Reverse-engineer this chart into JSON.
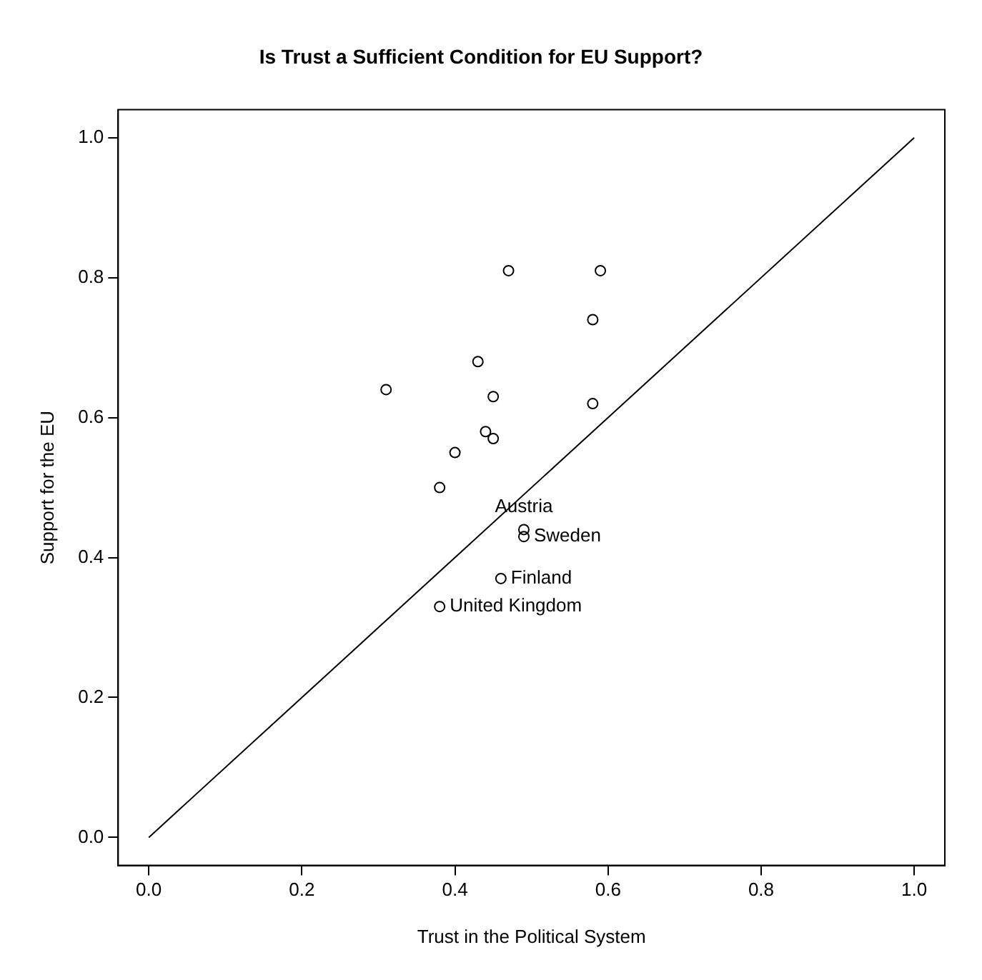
{
  "chart_data": {
    "type": "scatter",
    "title": "Is Trust a Sufficient Condition for EU Support?",
    "xlabel": "Trust in the Political System",
    "ylabel": "Support for the EU",
    "series": [
      {
        "color": "#000000",
        "marker": "circle",
        "x": [
          0.31,
          0.47,
          0.59,
          0.58,
          0.43,
          0.45,
          0.58,
          0.44,
          0.45,
          0.4,
          0.38,
          0.49,
          0.49,
          0.46,
          0.38
        ],
        "values": [
          0.64,
          0.81,
          0.81,
          0.74,
          0.68,
          0.63,
          0.62,
          0.58,
          0.57,
          0.55,
          0.5,
          0.44,
          0.43,
          0.37,
          0.33
        ]
      },
      {
        "type": "line",
        "color": "#000000",
        "marker": "none",
        "line_style": "solid",
        "x": [
          0,
          1
        ],
        "values": [
          0,
          1
        ]
      }
    ],
    "annotations": [
      {
        "text": "Austria",
        "x": 0.49,
        "y": 0.44
      },
      {
        "text": "Sweden",
        "x": 0.49,
        "y": 0.43
      },
      {
        "text": "Finland",
        "x": 0.46,
        "y": 0.37
      },
      {
        "text": "United Kingdom",
        "x": 0.38,
        "y": 0.33
      }
    ],
    "xlim": [
      -0.04,
      1.04
    ],
    "ylim": [
      -0.04,
      1.04
    ],
    "xticks": [
      {
        "value": 0,
        "label": "0.0"
      },
      0.2,
      0.4,
      0.6,
      0.8,
      {
        "value": 1,
        "label": "1.0"
      }
    ],
    "yticks": [
      {
        "value": 0,
        "label": "0.0"
      },
      0.2,
      0.4,
      0.6,
      0.8,
      {
        "value": 1,
        "label": "1.0"
      }
    ],
    "grid": false,
    "legend": false
  }
}
